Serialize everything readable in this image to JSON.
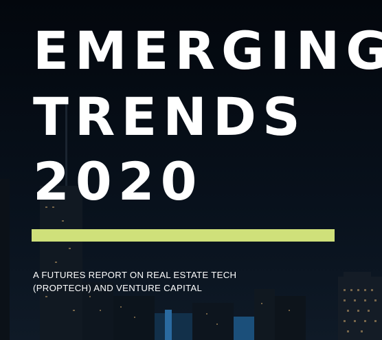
{
  "cover": {
    "title_lines": [
      "EMERGING",
      "TRENDS",
      "2020"
    ],
    "subtitle_lines": [
      "A FUTURES REPORT ON REAL ESTATE TECH",
      "(PROPTECH) AND VENTURE CAPITAL"
    ],
    "colors": {
      "background": "#050a12",
      "text": "#ffffff",
      "accent_bar": "#cfe07a"
    }
  }
}
